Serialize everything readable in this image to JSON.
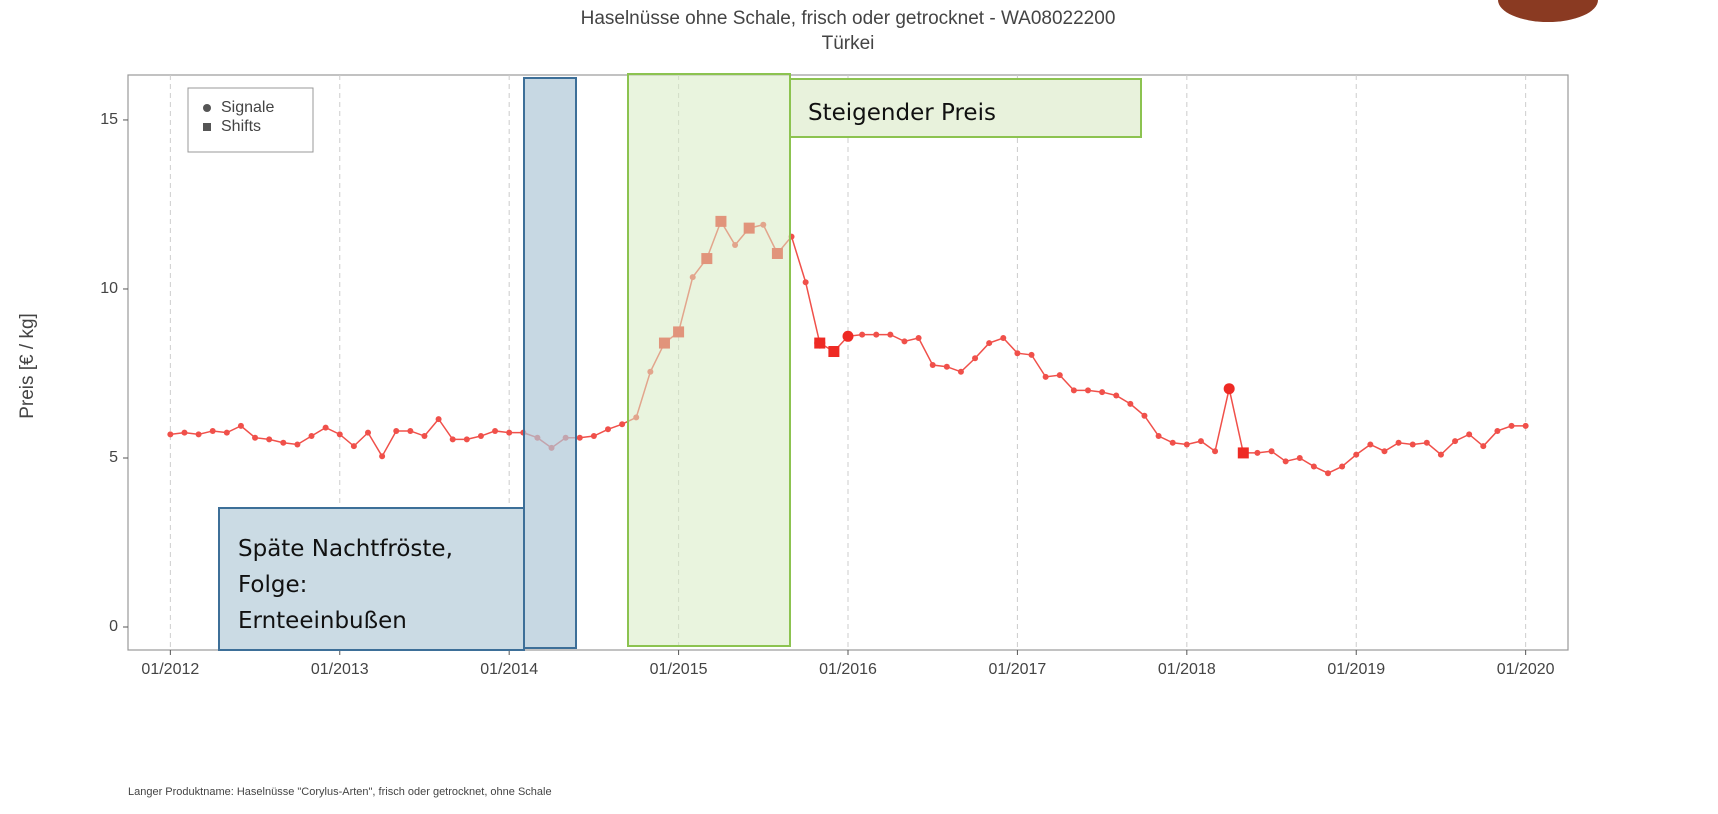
{
  "chart_data": {
    "type": "line",
    "title": "Haselnüsse ohne Schale, frisch oder getrocknet - WA08022200",
    "subtitle": "Türkei",
    "y_label": "Preis [€ / kg]",
    "footnote": "Langer Produktname: Haselnüsse \"Corylus-Arten\", frisch oder getrocknet, ohne Schale",
    "x": [
      "2012-01",
      "2012-02",
      "2012-03",
      "2012-04",
      "2012-05",
      "2012-06",
      "2012-07",
      "2012-08",
      "2012-09",
      "2012-10",
      "2012-11",
      "2012-12",
      "2013-01",
      "2013-02",
      "2013-03",
      "2013-04",
      "2013-05",
      "2013-06",
      "2013-07",
      "2013-08",
      "2013-09",
      "2013-10",
      "2013-11",
      "2013-12",
      "2014-01",
      "2014-02",
      "2014-03",
      "2014-04",
      "2014-05",
      "2014-06",
      "2014-07",
      "2014-08",
      "2014-09",
      "2014-10",
      "2014-11",
      "2014-12",
      "2015-01",
      "2015-02",
      "2015-03",
      "2015-04",
      "2015-05",
      "2015-06",
      "2015-07",
      "2015-08",
      "2015-09",
      "2015-10",
      "2015-11",
      "2015-12",
      "2016-01",
      "2016-02",
      "2016-03",
      "2016-04",
      "2016-05",
      "2016-06",
      "2016-07",
      "2016-08",
      "2016-09",
      "2016-10",
      "2016-11",
      "2016-12",
      "2017-01",
      "2017-02",
      "2017-03",
      "2017-04",
      "2017-05",
      "2017-06",
      "2017-07",
      "2017-08",
      "2017-09",
      "2017-10",
      "2017-11",
      "2017-12",
      "2018-01",
      "2018-02",
      "2018-03",
      "2018-04",
      "2018-05",
      "2018-06",
      "2018-07",
      "2018-08",
      "2018-09",
      "2018-10",
      "2018-11",
      "2018-12",
      "2019-01",
      "2019-02",
      "2019-03",
      "2019-04",
      "2019-05",
      "2019-06",
      "2019-07",
      "2019-08",
      "2019-09",
      "2019-10",
      "2019-11",
      "2019-12",
      "2020-01"
    ],
    "values": [
      5.7,
      5.75,
      5.7,
      5.8,
      5.75,
      5.95,
      5.6,
      5.55,
      5.45,
      5.4,
      5.65,
      5.9,
      5.7,
      5.35,
      5.75,
      5.05,
      5.8,
      5.8,
      5.65,
      6.15,
      5.55,
      5.55,
      5.65,
      5.8,
      5.75,
      5.75,
      5.6,
      5.3,
      5.6,
      5.6,
      5.65,
      5.85,
      6.0,
      6.2,
      7.55,
      8.4,
      8.73,
      10.35,
      10.9,
      12.0,
      11.3,
      11.8,
      11.9,
      11.05,
      11.55,
      10.2,
      8.4,
      8.15,
      8.6,
      8.65,
      8.65,
      8.65,
      8.45,
      8.55,
      7.75,
      7.7,
      7.55,
      7.95,
      8.4,
      8.55,
      8.1,
      8.05,
      7.4,
      7.45,
      7.0,
      7.0,
      6.95,
      6.85,
      6.6,
      6.25,
      5.65,
      5.45,
      5.4,
      5.5,
      5.2,
      7.05,
      5.15,
      5.15,
      5.2,
      4.9,
      5.0,
      4.75,
      4.55,
      4.75,
      5.1,
      5.4,
      5.2,
      5.45,
      5.4,
      5.45,
      5.1,
      5.5,
      5.7,
      5.35,
      5.8,
      5.95,
      5.95
    ],
    "color": "#f0504a",
    "series": [
      {
        "name": "Signale",
        "marker": "circle",
        "color": "#ee2a24",
        "indices": [
          46,
          48,
          75
        ]
      },
      {
        "name": "Shifts",
        "marker": "square",
        "color": "#ee2a24",
        "indices": [
          35,
          36,
          38,
          39,
          41,
          43,
          46,
          47,
          76
        ]
      }
    ],
    "xlim": [
      "2011-10",
      "2020-04"
    ],
    "xticks": [
      {
        "value": "2012-01",
        "label": "01/2012"
      },
      {
        "value": "2013-01",
        "label": "01/2013"
      },
      {
        "value": "2014-01",
        "label": "01/2014"
      },
      {
        "value": "2015-01",
        "label": "01/2015"
      },
      {
        "value": "2016-01",
        "label": "01/2016"
      },
      {
        "value": "2017-01",
        "label": "01/2017"
      },
      {
        "value": "2018-01",
        "label": "01/2018"
      },
      {
        "value": "2019-01",
        "label": "01/2019"
      },
      {
        "value": "2020-01",
        "label": "01/2020"
      }
    ],
    "ylim": [
      -0.68,
      16.33
    ],
    "yticks": [
      0,
      5,
      10,
      15
    ],
    "grid": true,
    "legend": "top-left",
    "annotations": [
      {
        "lines": [
          "Späte Nachtfröste,",
          "Folge:",
          "Ernteeinbußen"
        ]
      },
      {
        "lines": [
          "Steigender Preis"
        ]
      }
    ]
  }
}
